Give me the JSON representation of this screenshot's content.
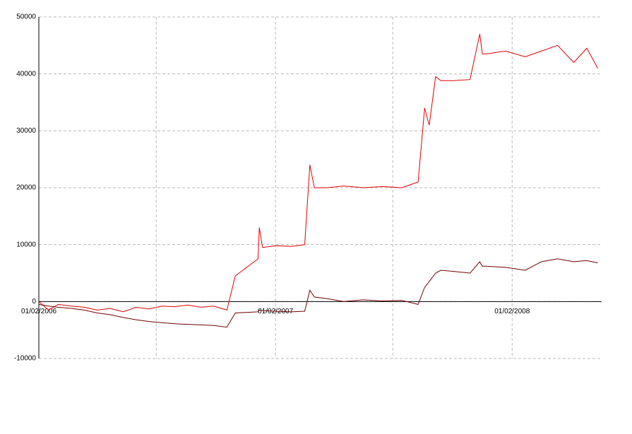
{
  "chart_data": {
    "type": "line",
    "x": [
      "2006-02-01",
      "2006-02-16",
      "2006-03-03",
      "2006-03-23",
      "2006-04-12",
      "2006-05-02",
      "2006-05-22",
      "2006-06-11",
      "2006-07-01",
      "2006-07-21",
      "2006-08-10",
      "2006-08-30",
      "2006-09-19",
      "2006-10-09",
      "2006-10-29",
      "2006-11-18",
      "2006-12-01",
      "2007-01-05",
      "2007-01-07",
      "2007-01-12",
      "2007-02-01",
      "2007-02-26",
      "2007-03-18",
      "2007-03-26",
      "2007-04-02",
      "2007-04-22",
      "2007-05-17",
      "2007-06-16",
      "2007-07-16",
      "2007-08-15",
      "2007-09-09",
      "2007-09-19",
      "2007-09-26",
      "2007-10-06",
      "2007-10-14",
      "2007-11-03",
      "2007-11-28",
      "2007-12-13",
      "2007-12-17",
      "2007-12-23",
      "2008-01-22",
      "2008-02-21",
      "2008-03-17",
      "2008-04-11",
      "2008-05-06",
      "2008-05-26",
      "2008-06-12"
    ],
    "series": [
      {
        "color": "#e00000",
        "values": [
          0,
          -1500,
          -500,
          -800,
          -1000,
          -1500,
          -1200,
          -1800,
          -1000,
          -1300,
          -800,
          -900,
          -600,
          -1000,
          -800,
          -1500,
          4500,
          7500,
          13000,
          9500,
          9800,
          9700,
          10000,
          24000,
          20000,
          20000,
          20300,
          20000,
          20200,
          20000,
          21000,
          34000,
          31000,
          39500,
          38800,
          38800,
          39000,
          47000,
          43500,
          43500,
          44000,
          43000,
          44000,
          45000,
          42000,
          44500,
          41000
        ]
      },
      {
        "color": "#700000",
        "values": [
          -500,
          -800,
          -1000,
          -1200,
          -1500,
          -2000,
          -2300,
          -2800,
          -3200,
          -3500,
          -3700,
          -3900,
          -4000,
          -4100,
          -4200,
          -4500,
          -2000,
          -1800,
          -1500,
          -1600,
          -1700,
          -1800,
          -1700,
          2000,
          800,
          500,
          0,
          300,
          100,
          200,
          -500,
          2500,
          3500,
          5000,
          5500,
          5300,
          5000,
          7000,
          6200,
          6200,
          6000,
          5500,
          7000,
          7500,
          7000,
          7200,
          6800
        ]
      }
    ],
    "xlim": [
      "2006-02-01",
      "2008-06-18"
    ],
    "xticks": [
      {
        "value": "2006-02-01",
        "label": "01/02/2006"
      },
      {
        "value": "2006-08-01",
        "label": null
      },
      {
        "value": "2007-02-01",
        "label": "01/02/2007"
      },
      {
        "value": "2007-08-01",
        "label": null
      },
      {
        "value": "2008-02-01",
        "label": "01/02/2008"
      }
    ],
    "ylim": [
      -10000,
      50000
    ],
    "yticks": [
      -10000,
      0,
      10000,
      20000,
      30000,
      40000,
      50000
    ],
    "grid": true
  }
}
